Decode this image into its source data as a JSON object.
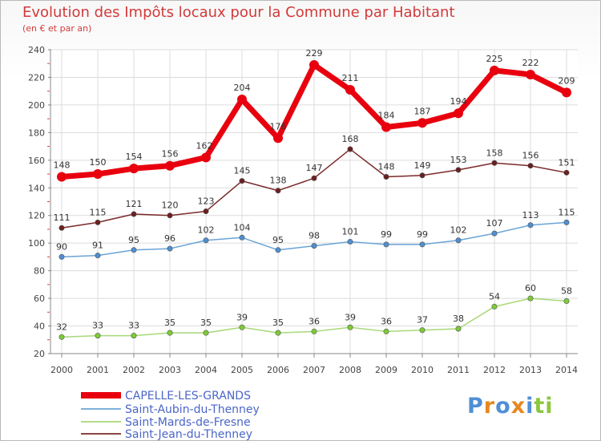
{
  "title": "Evolution des Impôts locaux pour la Commune par Habitant",
  "subtitle": "(en € et par an)",
  "logo_text": "Proxiti",
  "logo_colors": [
    "#4f8fd6",
    "#e7871f",
    "#4f8fd6",
    "#e7871f",
    "#4f8fd6",
    "#8cc63e",
    "#8cc63e"
  ],
  "chart_data": {
    "type": "line",
    "title": "Evolution des Impôts locaux pour la Commune par Habitant",
    "subtitle": "(en € et par an)",
    "xlabel": "",
    "ylabel": "",
    "ylim": [
      20,
      240
    ],
    "yticks": [
      20,
      40,
      60,
      80,
      100,
      120,
      140,
      160,
      180,
      200,
      220,
      240
    ],
    "grid": true,
    "legend_position": "bottom-left",
    "x": [
      "2000",
      "2001",
      "2002",
      "2003",
      "2004",
      "2005",
      "2006",
      "2007",
      "2008",
      "2009",
      "2010",
      "2011",
      "2012",
      "2013",
      "2014"
    ],
    "series": [
      {
        "name": "CAPELLE-LES-GRANDS",
        "color": "#e8000e",
        "marker_color": "#e8000e",
        "values": [
          148,
          150,
          154,
          156,
          162,
          204,
          176,
          229,
          211,
          184,
          187,
          194,
          225,
          222,
          209
        ],
        "labels": [
          "148",
          "150",
          "154",
          "156",
          "162",
          "204",
          "176",
          "229",
          "211",
          "184",
          "187",
          "194",
          "225",
          "222",
          "209"
        ]
      },
      {
        "name": "Saint-Aubin-du-Thenney",
        "color": "#6aa4d6",
        "marker_color": "#4f8fd0",
        "values": [
          90,
          91,
          95,
          96,
          102,
          104,
          95,
          98,
          101,
          99,
          99,
          102,
          107,
          113,
          115
        ],
        "labels": [
          "90",
          "91",
          "95",
          "96",
          "102",
          "104",
          "95",
          "98",
          "101",
          "99",
          "99",
          "102",
          "107",
          "113",
          "115"
        ]
      },
      {
        "name": "Saint-Mards-de-Fresne",
        "color": "#a8d878",
        "marker_color": "#7ccc35",
        "values": [
          32,
          33,
          33,
          35,
          35,
          39,
          35,
          36,
          39,
          36,
          37,
          38,
          54,
          60,
          58
        ],
        "labels": [
          "32",
          "33",
          "33",
          "35",
          "35",
          "39",
          "35",
          "36",
          "39",
          "36",
          "37",
          "38",
          "54",
          "60",
          "58"
        ]
      },
      {
        "name": "Saint-Jean-du-Thenney",
        "color": "#7b2a2a",
        "marker_color": "#6b1f1f",
        "values": [
          111,
          115,
          121,
          120,
          123,
          145,
          138,
          147,
          168,
          148,
          149,
          153,
          158,
          156,
          151
        ],
        "labels": [
          "111",
          "115",
          "121",
          "120",
          "123",
          "145",
          "138",
          "147",
          "168",
          "148",
          "149",
          "153",
          "158",
          "156",
          "151"
        ]
      }
    ]
  }
}
